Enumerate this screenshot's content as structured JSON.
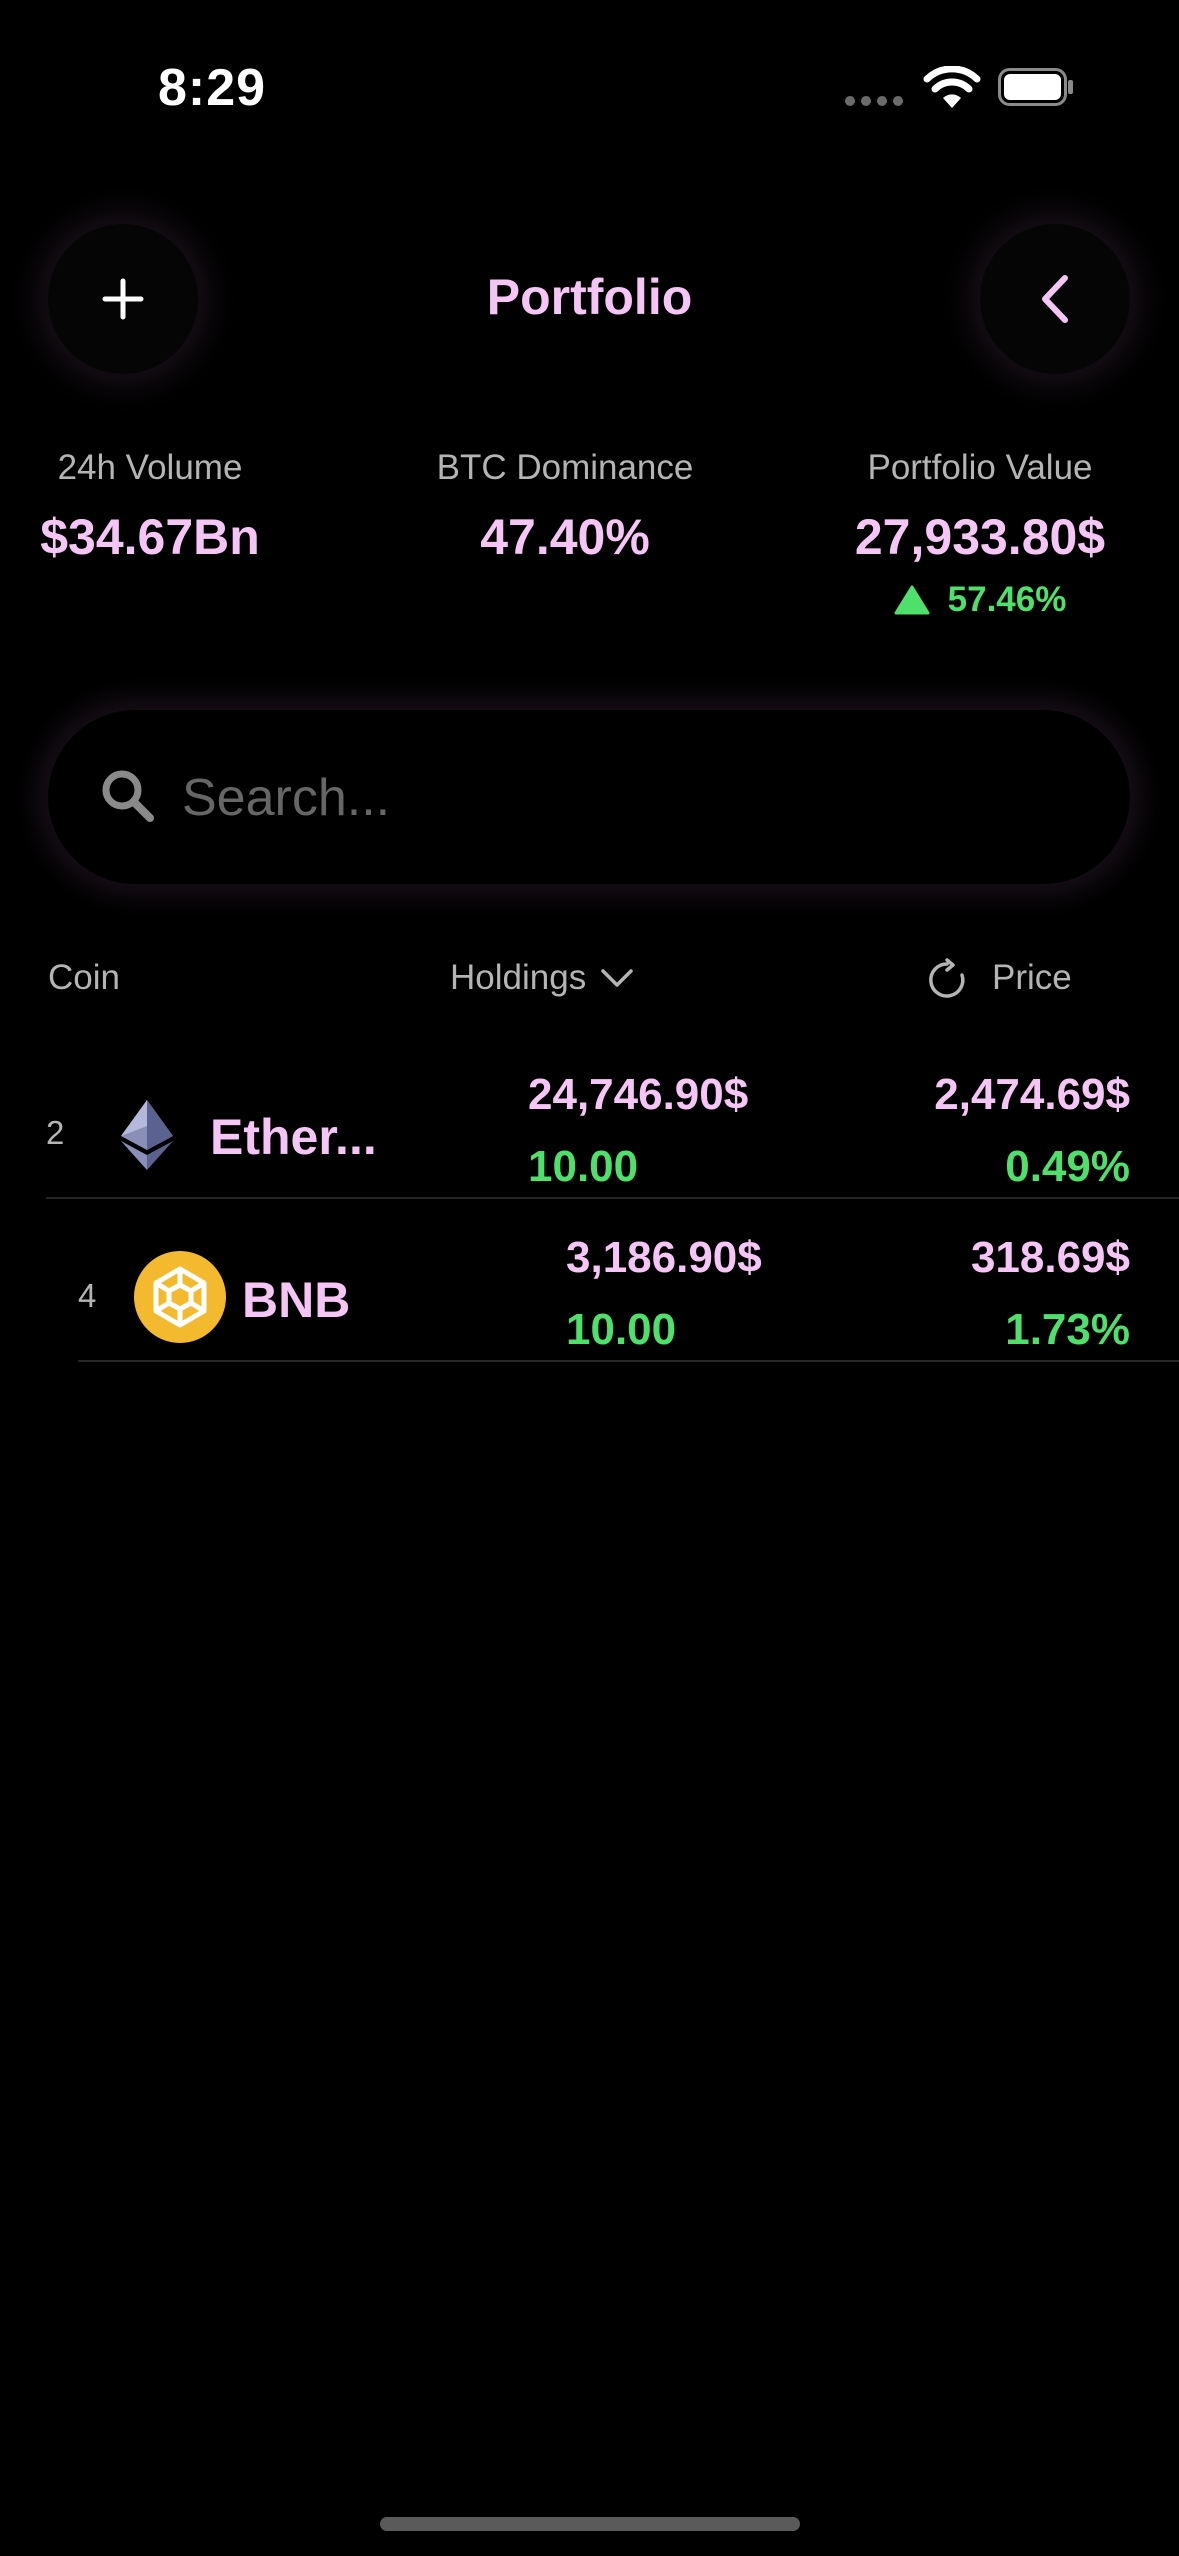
{
  "status_bar": {
    "time": "8:29"
  },
  "header": {
    "title": "Portfolio"
  },
  "stats": [
    {
      "label": "24h Volume",
      "value": "$34.67Bn"
    },
    {
      "label": "BTC Dominance",
      "value": "47.40%"
    },
    {
      "label": "Portfolio Value",
      "value": "27,933.80$",
      "change": "57.46%"
    }
  ],
  "search": {
    "placeholder": "Search..."
  },
  "columns": {
    "coin": "Coin",
    "holdings": "Holdings",
    "price": "Price"
  },
  "rows": [
    {
      "rank": "2",
      "symbol": "Ether...",
      "holdings_value": "24,746.90$",
      "holdings_amount": "10.00",
      "price": "2,474.69$",
      "price_change": "0.49%",
      "icon": "ethereum-icon"
    },
    {
      "rank": "4",
      "symbol": "BNB",
      "holdings_value": "3,186.90$",
      "holdings_amount": "10.00",
      "price": "318.69$",
      "price_change": "1.73%",
      "icon": "bnb-icon"
    }
  ],
  "colors": {
    "accent": "#f5c6f5",
    "positive": "#4ee06a",
    "background": "#000000",
    "muted": "#b4b4b4"
  }
}
